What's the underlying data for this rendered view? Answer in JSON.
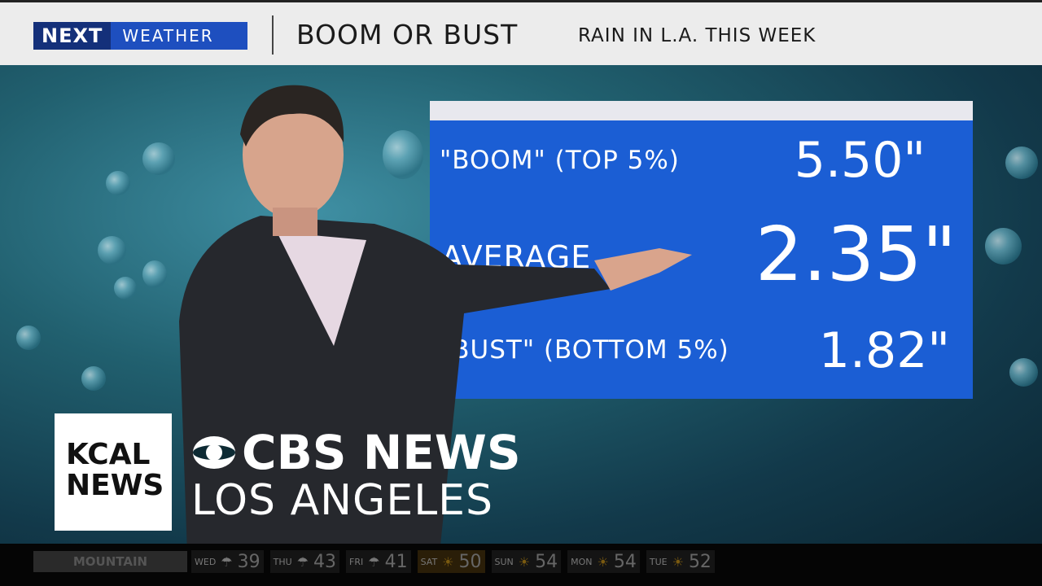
{
  "header": {
    "logo_next": "NEXT",
    "logo_weather": "WEATHER",
    "headline": "BOOM OR BUST",
    "subhead": "RAIN IN L.A. THIS WEEK"
  },
  "board": {
    "rows": [
      {
        "label": "\"BOOM\" (TOP 5%)",
        "value": "5.50\""
      },
      {
        "label": "AVERAGE",
        "value": "2.35\""
      },
      {
        "label": "\"BUST\" (BOTTOM 5%)",
        "value": "1.82\""
      }
    ],
    "color": "#1b5ed4"
  },
  "branding": {
    "kcal_line1": "KCAL",
    "kcal_line2": "NEWS",
    "cbs": "CBS NEWS",
    "city": "LOS ANGELES"
  },
  "ticker": {
    "region": "MOUNTAIN",
    "days": [
      {
        "day": "WED",
        "icon": "rain-icon",
        "temp": "39"
      },
      {
        "day": "THU",
        "icon": "rain-icon",
        "temp": "43"
      },
      {
        "day": "FRI",
        "icon": "rain-icon",
        "temp": "41"
      },
      {
        "day": "SAT",
        "icon": "sun-icon",
        "temp": "50"
      },
      {
        "day": "SUN",
        "icon": "sun-icon",
        "temp": "54"
      },
      {
        "day": "MON",
        "icon": "sun-icon",
        "temp": "54"
      },
      {
        "day": "TUE",
        "icon": "sun-icon",
        "temp": "52"
      }
    ]
  }
}
